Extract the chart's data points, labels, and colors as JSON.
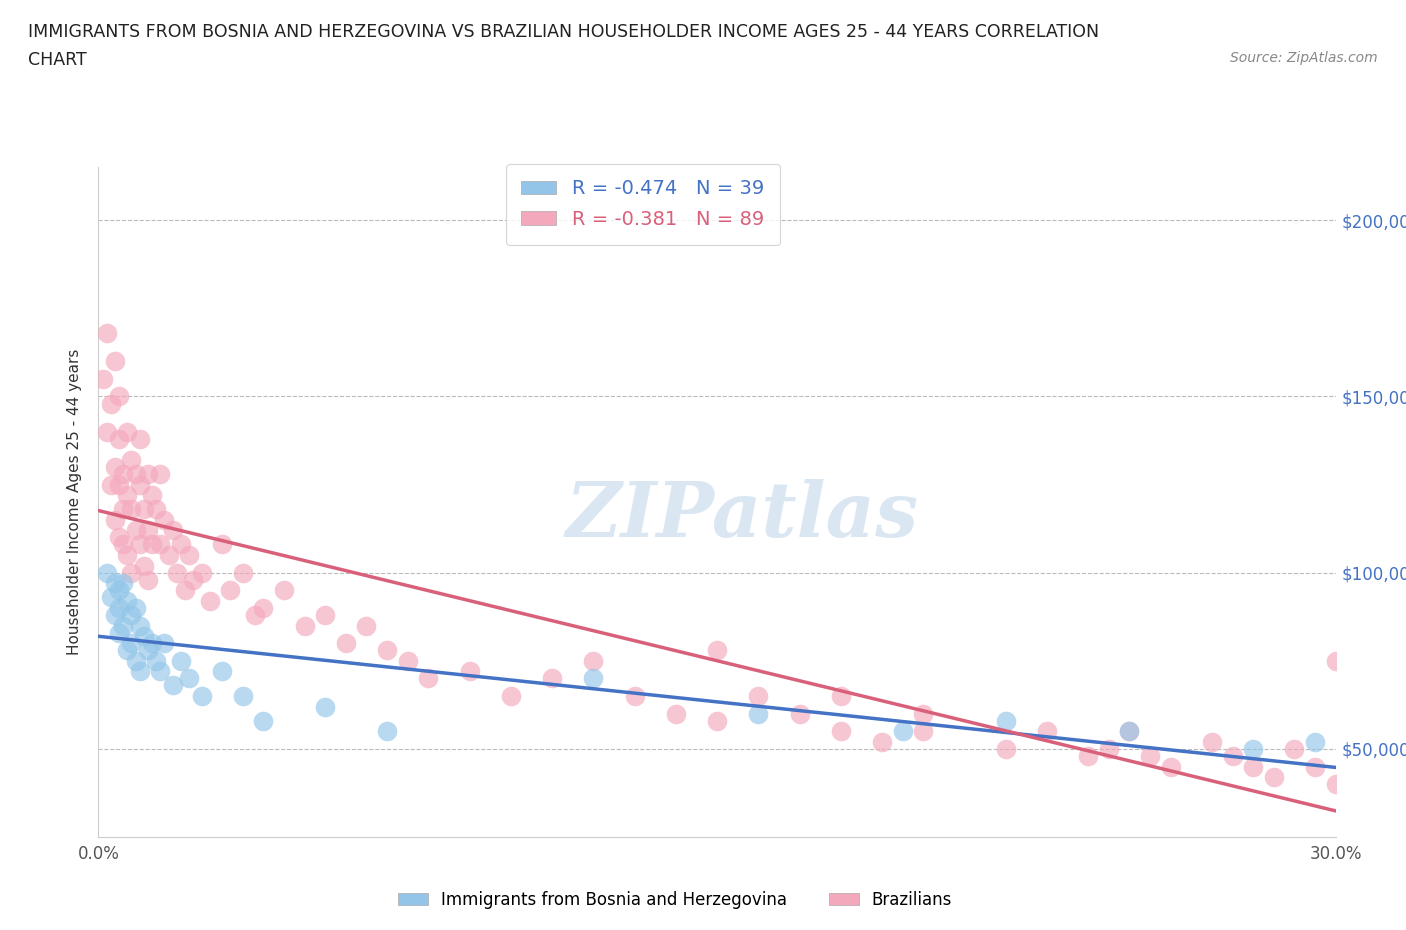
{
  "title_line1": "IMMIGRANTS FROM BOSNIA AND HERZEGOVINA VS BRAZILIAN HOUSEHOLDER INCOME AGES 25 - 44 YEARS CORRELATION",
  "title_line2": "CHART",
  "source_text": "Source: ZipAtlas.com",
  "ylabel": "Householder Income Ages 25 - 44 years",
  "xlim": [
    0.0,
    0.3
  ],
  "ylim": [
    25000,
    215000
  ],
  "xticks": [
    0.0,
    0.05,
    0.1,
    0.15,
    0.2,
    0.25,
    0.3
  ],
  "xticklabels": [
    "0.0%",
    "",
    "",
    "",
    "",
    "",
    "30.0%"
  ],
  "yticks": [
    50000,
    100000,
    150000,
    200000
  ],
  "yticklabels": [
    "$50,000",
    "$100,000",
    "$150,000",
    "$200,000"
  ],
  "bosnia_R": -0.474,
  "bosnia_N": 39,
  "brazil_R": -0.381,
  "brazil_N": 89,
  "bosnia_color": "#92C5E8",
  "brazil_color": "#F4A8BC",
  "bosnia_line_color": "#4472C4",
  "brazil_line_color": "#D9607A",
  "bosnia_x": [
    0.002,
    0.003,
    0.004,
    0.004,
    0.005,
    0.005,
    0.005,
    0.006,
    0.006,
    0.007,
    0.007,
    0.008,
    0.008,
    0.009,
    0.009,
    0.01,
    0.01,
    0.011,
    0.012,
    0.013,
    0.014,
    0.015,
    0.016,
    0.018,
    0.02,
    0.022,
    0.025,
    0.03,
    0.035,
    0.04,
    0.055,
    0.07,
    0.12,
    0.16,
    0.195,
    0.22,
    0.25,
    0.28,
    0.295
  ],
  "bosnia_y": [
    100000,
    93000,
    97000,
    88000,
    95000,
    90000,
    83000,
    97000,
    85000,
    92000,
    78000,
    88000,
    80000,
    90000,
    75000,
    85000,
    72000,
    82000,
    78000,
    80000,
    75000,
    72000,
    80000,
    68000,
    75000,
    70000,
    65000,
    72000,
    65000,
    58000,
    62000,
    55000,
    70000,
    60000,
    55000,
    58000,
    55000,
    50000,
    52000
  ],
  "brazil_x": [
    0.001,
    0.002,
    0.002,
    0.003,
    0.003,
    0.004,
    0.004,
    0.004,
    0.005,
    0.005,
    0.005,
    0.005,
    0.006,
    0.006,
    0.006,
    0.007,
    0.007,
    0.007,
    0.008,
    0.008,
    0.008,
    0.009,
    0.009,
    0.01,
    0.01,
    0.01,
    0.011,
    0.011,
    0.012,
    0.012,
    0.012,
    0.013,
    0.013,
    0.014,
    0.015,
    0.015,
    0.016,
    0.017,
    0.018,
    0.019,
    0.02,
    0.021,
    0.022,
    0.023,
    0.025,
    0.027,
    0.03,
    0.032,
    0.035,
    0.038,
    0.04,
    0.045,
    0.05,
    0.055,
    0.06,
    0.065,
    0.07,
    0.075,
    0.08,
    0.09,
    0.1,
    0.11,
    0.12,
    0.13,
    0.14,
    0.15,
    0.16,
    0.17,
    0.18,
    0.19,
    0.2,
    0.22,
    0.24,
    0.25,
    0.26,
    0.275,
    0.285,
    0.29,
    0.295,
    0.3,
    0.15,
    0.18,
    0.2,
    0.23,
    0.245,
    0.255,
    0.27,
    0.28,
    0.3
  ],
  "brazil_y": [
    155000,
    140000,
    168000,
    125000,
    148000,
    130000,
    115000,
    160000,
    125000,
    138000,
    110000,
    150000,
    128000,
    118000,
    108000,
    140000,
    122000,
    105000,
    132000,
    118000,
    100000,
    128000,
    112000,
    125000,
    108000,
    138000,
    118000,
    102000,
    128000,
    112000,
    98000,
    122000,
    108000,
    118000,
    128000,
    108000,
    115000,
    105000,
    112000,
    100000,
    108000,
    95000,
    105000,
    98000,
    100000,
    92000,
    108000,
    95000,
    100000,
    88000,
    90000,
    95000,
    85000,
    88000,
    80000,
    85000,
    78000,
    75000,
    70000,
    72000,
    65000,
    70000,
    75000,
    65000,
    60000,
    58000,
    65000,
    60000,
    55000,
    52000,
    55000,
    50000,
    48000,
    55000,
    45000,
    48000,
    42000,
    50000,
    45000,
    40000,
    78000,
    65000,
    60000,
    55000,
    50000,
    48000,
    52000,
    45000,
    75000
  ]
}
